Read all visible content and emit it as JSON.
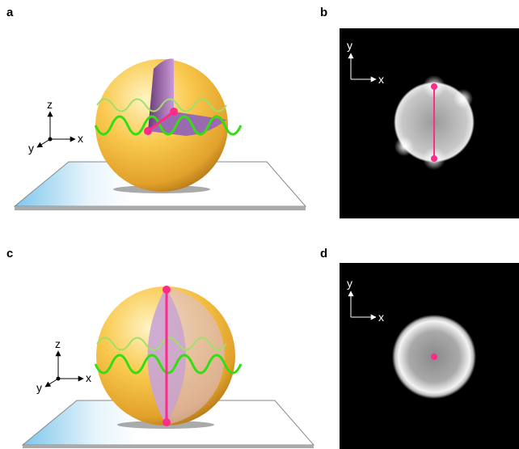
{
  "panels": [
    {
      "label": "a",
      "axes": {
        "z": "z",
        "x": "x",
        "y": "y"
      }
    },
    {
      "label": "b",
      "axes": {
        "y": "y",
        "x": "x"
      }
    },
    {
      "label": "c",
      "axes": {
        "z": "z",
        "x": "x",
        "y": "y"
      }
    },
    {
      "label": "d",
      "axes": {
        "y": "y",
        "x": "x"
      }
    }
  ]
}
